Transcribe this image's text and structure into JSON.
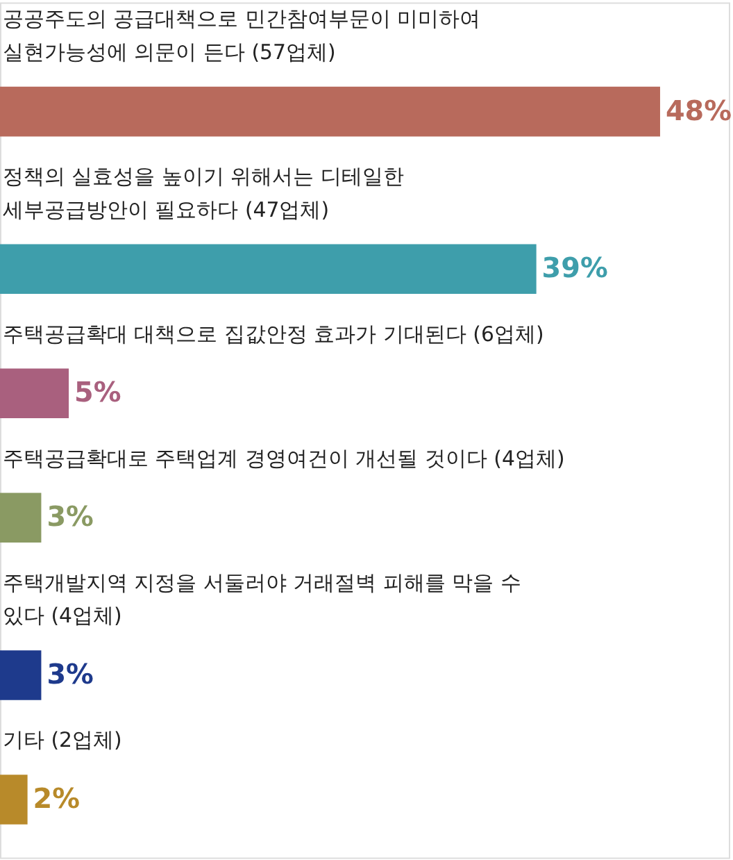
{
  "chart_data": {
    "type": "bar",
    "orientation": "horizontal",
    "categories": [
      "공공주도의 공급대책으로 민간참여부문이 미미하여\n실현가능성에 의문이 든다 (57업체)",
      "정책의 실효성을 높이기 위해서는 디테일한\n세부공급방안이 필요하다 (47업체)",
      "주택공급확대 대책으로 집값안정 효과가 기대된다 (6업체)",
      "주택공급확대로 주택업계 경영여건이 개선될 것이다 (4업체)",
      "주택개발지역 지정을 서둘러야 거래절벽 피해를 막을 수\n있다 (4업체)",
      "기타 (2업체)"
    ],
    "values": [
      48,
      39,
      5,
      3,
      3,
      2
    ],
    "colors": [
      "#b86a5c",
      "#3e9eab",
      "#a9607e",
      "#8a9a63",
      "#1e3a8c",
      "#b88a2a"
    ],
    "value_labels": [
      "48%",
      "39%",
      "5%",
      "3%",
      "3%",
      "2%"
    ],
    "xlim": [
      0,
      53
    ],
    "tick_labels": false
  }
}
